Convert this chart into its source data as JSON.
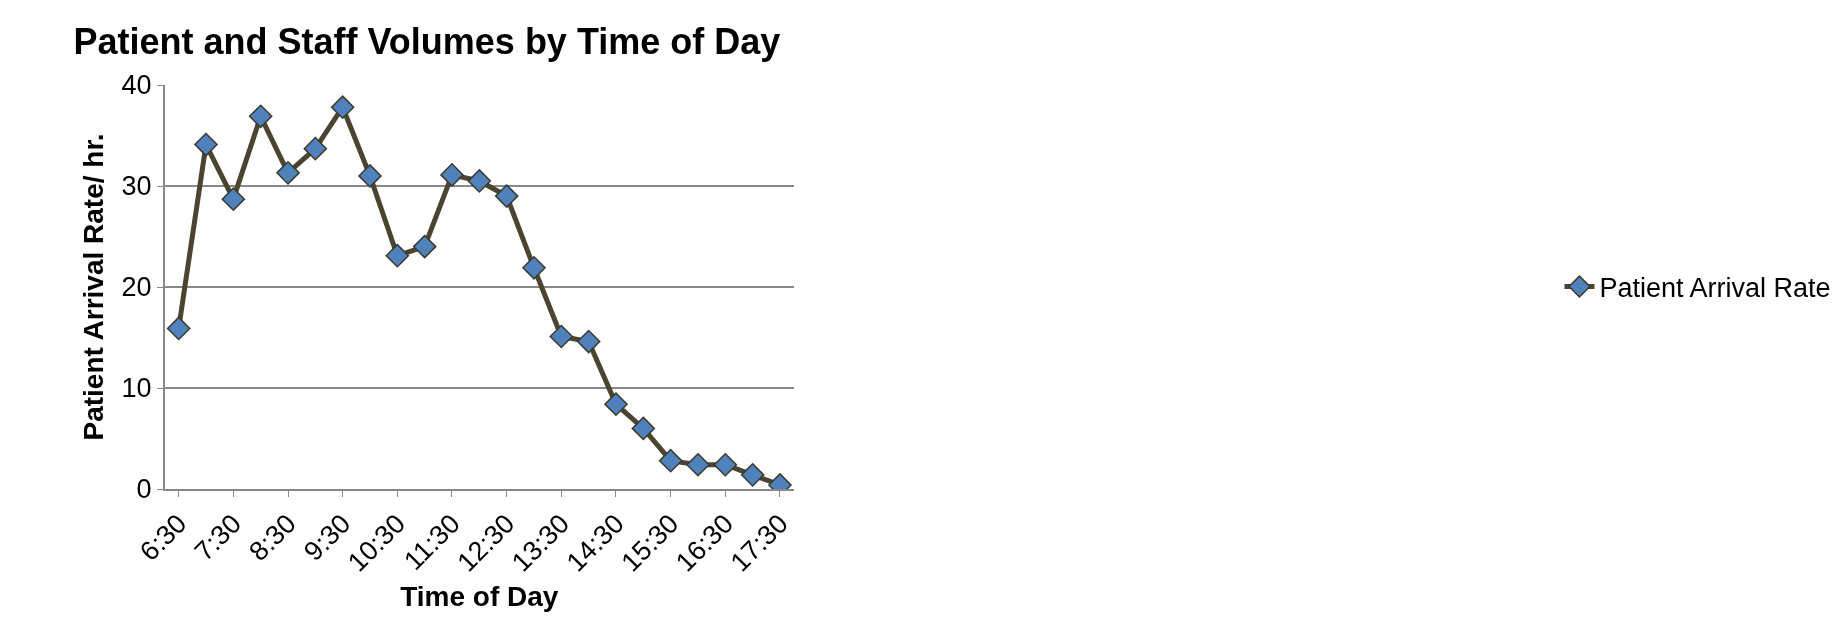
{
  "chart_data": {
    "type": "line",
    "title": "Patient and Staff Volumes by Time of Day",
    "xlabel": "Time of Day",
    "ylabel": "Patient Arrival Rate/ hr.",
    "categories": [
      "6:30",
      null,
      "7:30",
      null,
      "8:30",
      null,
      "9:30",
      null,
      "10:30",
      null,
      "11:30",
      null,
      "12:30",
      null,
      "13:30",
      null,
      "14:30",
      null,
      "15:30",
      null,
      "16:30",
      null,
      "17:30"
    ],
    "series": [
      {
        "name": "Patient Arrival Rate",
        "color": "#4a4430",
        "values": [
          15.9,
          34.1,
          28.7,
          36.9,
          31.3,
          33.7,
          37.8,
          31.0,
          23.1,
          24.0,
          31.1,
          30.5,
          29.0,
          21.9,
          15.1,
          14.6,
          8.4,
          6.0,
          2.8,
          2.4,
          2.4,
          1.4,
          0.4
        ]
      }
    ],
    "ylim": [
      0,
      40
    ],
    "yticks": [
      0,
      10,
      20,
      30,
      40
    ],
    "grid": "y",
    "legend": "right",
    "marker": "diamond",
    "line_style": "solid"
  }
}
